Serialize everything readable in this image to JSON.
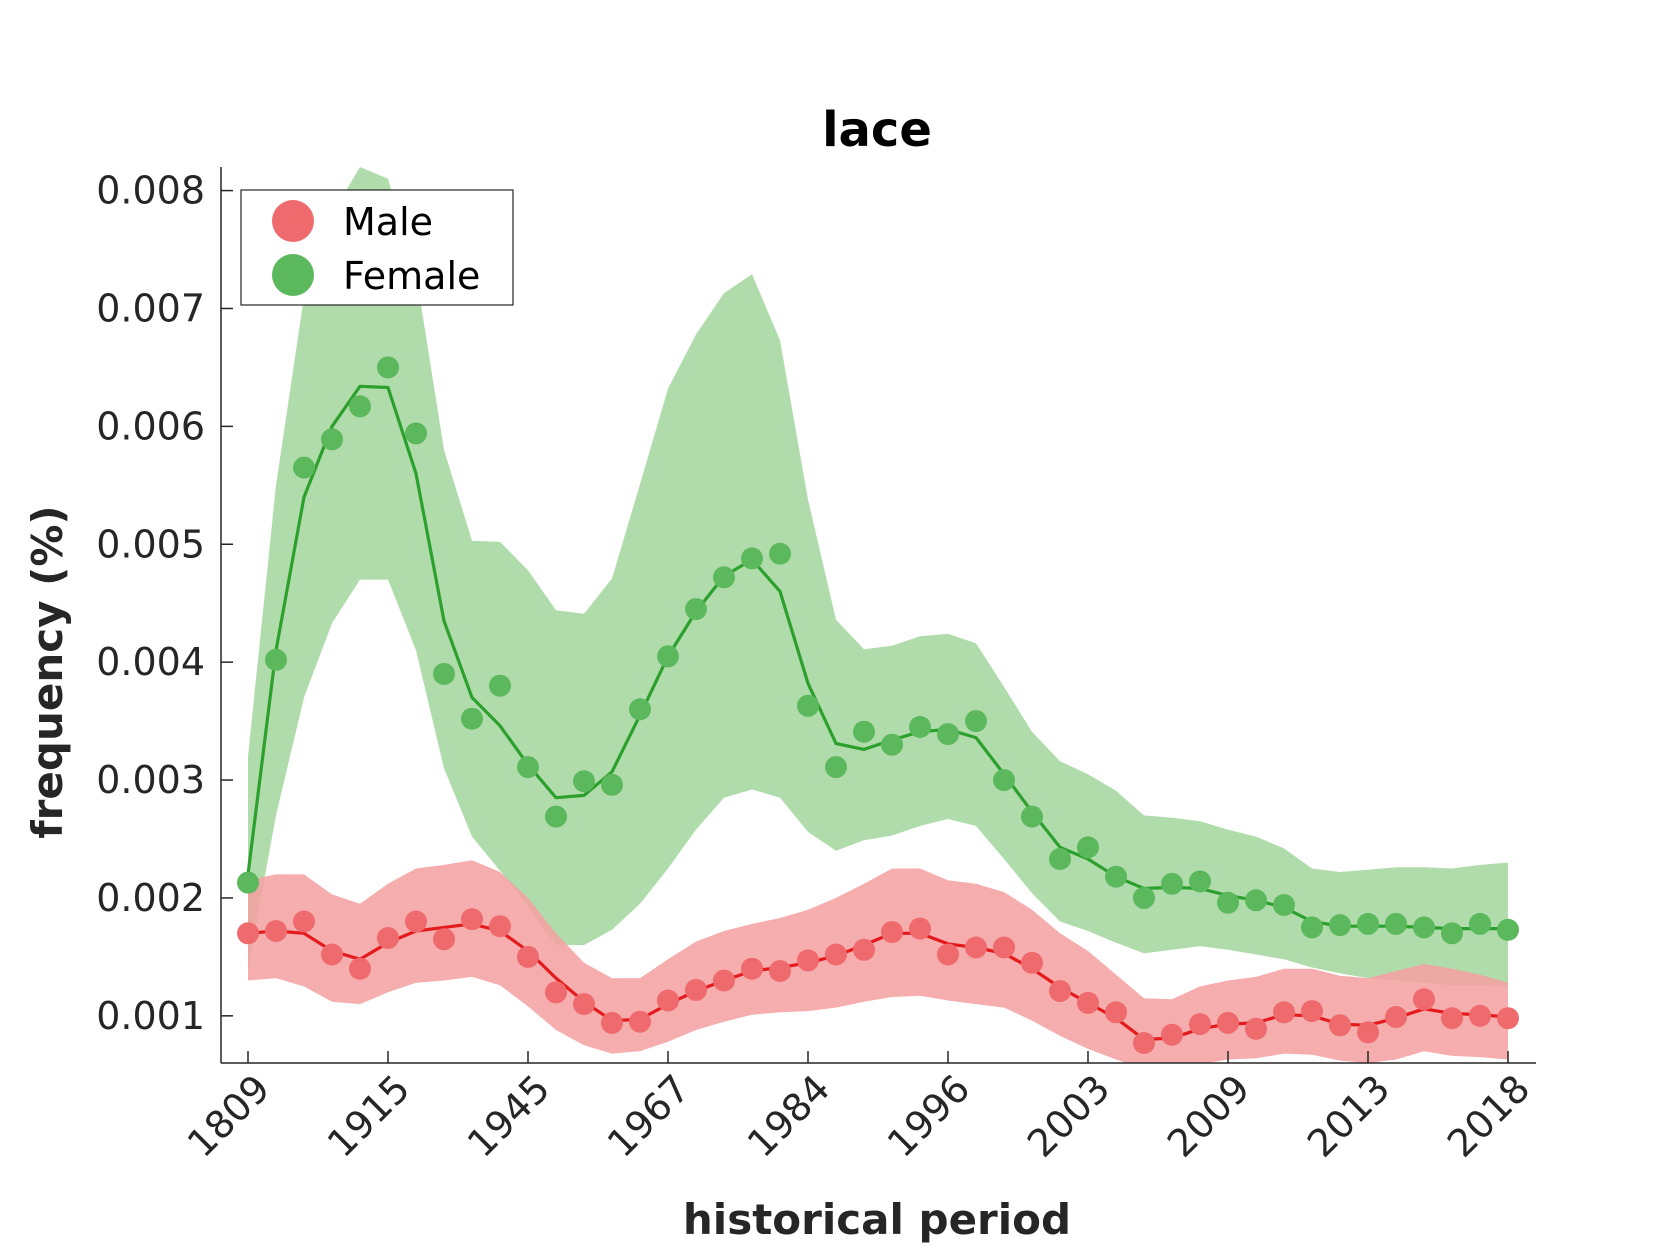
{
  "chart_data": {
    "type": "line",
    "title": "lace",
    "xlabel": "historical period",
    "ylabel": "frequency (%)",
    "ylim": [
      0.0006,
      0.0082
    ],
    "yticks": [
      "0.001",
      "0.002",
      "0.003",
      "0.004",
      "0.005",
      "0.006",
      "0.007",
      "0.008"
    ],
    "ytick_values": [
      0.001,
      0.002,
      0.003,
      0.004,
      0.005,
      0.006,
      0.007,
      0.008
    ],
    "xtick_labels": [
      "1809",
      "1915",
      "1945",
      "1967",
      "1984",
      "1996",
      "2003",
      "2009",
      "2013",
      "2018"
    ],
    "xtick_index": [
      0,
      5,
      10,
      15,
      20,
      25,
      30,
      35,
      40,
      45
    ],
    "n_points": 46,
    "grid": false,
    "legend_position": "top-left",
    "series": [
      {
        "name": "Male",
        "color": "#e41a1c",
        "dot_color": "#ee6a6c",
        "band_color": "#f4a2a3",
        "points": [
          0.0017,
          0.00172,
          0.0018,
          0.00152,
          0.0014,
          0.00166,
          0.0018,
          0.00165,
          0.00182,
          0.00176,
          0.0015,
          0.0012,
          0.0011,
          0.00094,
          0.00095,
          0.00113,
          0.00122,
          0.0013,
          0.0014,
          0.00138,
          0.00147,
          0.00152,
          0.00156,
          0.00171,
          0.00174,
          0.00152,
          0.00158,
          0.00158,
          0.00145,
          0.00121,
          0.00111,
          0.00103,
          0.00077,
          0.00084,
          0.00093,
          0.00094,
          0.00089,
          0.00103,
          0.00104,
          0.00092,
          0.00086,
          0.00099,
          0.00114,
          0.00098,
          0.001,
          0.00098
        ],
        "line": [
          0.0017,
          0.00172,
          0.0017,
          0.00155,
          0.00148,
          0.00162,
          0.00172,
          0.00175,
          0.00178,
          0.00172,
          0.00155,
          0.00132,
          0.00112,
          0.00096,
          0.00097,
          0.0011,
          0.00121,
          0.0013,
          0.00138,
          0.00141,
          0.00145,
          0.00151,
          0.0016,
          0.0017,
          0.0017,
          0.00161,
          0.00158,
          0.00153,
          0.0014,
          0.00124,
          0.00111,
          0.00098,
          0.0008,
          0.00081,
          0.00089,
          0.00093,
          0.00094,
          0.00101,
          0.001,
          0.00093,
          0.00092,
          0.00098,
          0.00106,
          0.00102,
          0.00101,
          0.00099
        ],
        "upper": [
          0.00215,
          0.0022,
          0.0022,
          0.00203,
          0.00195,
          0.00212,
          0.00225,
          0.00228,
          0.00232,
          0.00222,
          0.002,
          0.0017,
          0.00145,
          0.00132,
          0.00132,
          0.00148,
          0.00163,
          0.00172,
          0.00178,
          0.00183,
          0.0019,
          0.002,
          0.00212,
          0.00225,
          0.00225,
          0.00215,
          0.00212,
          0.00205,
          0.0019,
          0.0017,
          0.00155,
          0.00135,
          0.00115,
          0.00114,
          0.00125,
          0.0013,
          0.00133,
          0.0014,
          0.0014,
          0.00134,
          0.00132,
          0.00138,
          0.00144,
          0.0014,
          0.00135,
          0.00128
        ],
        "lower": [
          0.0013,
          0.00132,
          0.00125,
          0.00112,
          0.0011,
          0.0012,
          0.00128,
          0.0013,
          0.00133,
          0.00126,
          0.00108,
          0.00088,
          0.00075,
          0.00068,
          0.0007,
          0.00078,
          0.00088,
          0.00095,
          0.00101,
          0.00103,
          0.00104,
          0.00107,
          0.00112,
          0.00116,
          0.00117,
          0.00113,
          0.0011,
          0.00107,
          0.00096,
          0.00083,
          0.00072,
          0.00063,
          0.00055,
          0.00056,
          0.00059,
          0.00063,
          0.00064,
          0.00068,
          0.00067,
          0.00062,
          0.0006,
          0.00063,
          0.0007,
          0.00066,
          0.00065,
          0.00063
        ]
      },
      {
        "name": "Female",
        "color": "#2ca02c",
        "dot_color": "#5cb85c",
        "band_color": "#b0dcab",
        "points": [
          0.00213,
          0.00402,
          0.00565,
          0.00589,
          0.00617,
          0.0065,
          0.00594,
          0.0039,
          0.00352,
          0.0038,
          0.00311,
          0.00269,
          0.00299,
          0.00296,
          0.0036,
          0.00405,
          0.00445,
          0.00472,
          0.00488,
          0.00492,
          0.00363,
          0.00311,
          0.00341,
          0.0033,
          0.00345,
          0.00339,
          0.0035,
          0.003,
          0.00269,
          0.00233,
          0.00243,
          0.00218,
          0.002,
          0.00212,
          0.00214,
          0.00196,
          0.00198,
          0.00194,
          0.00175,
          0.00177,
          0.00178,
          0.00178,
          0.00175,
          0.0017,
          0.00178,
          0.00173
        ],
        "line": [
          0.0022,
          0.0041,
          0.0054,
          0.006,
          0.00634,
          0.00633,
          0.0056,
          0.00435,
          0.0037,
          0.00346,
          0.00313,
          0.00285,
          0.00287,
          0.00307,
          0.00355,
          0.00405,
          0.00443,
          0.00473,
          0.00487,
          0.0046,
          0.00382,
          0.00331,
          0.00326,
          0.00334,
          0.00341,
          0.00343,
          0.00336,
          0.00305,
          0.00273,
          0.00243,
          0.00233,
          0.00218,
          0.00208,
          0.00209,
          0.00208,
          0.00202,
          0.00198,
          0.00192,
          0.0018,
          0.00176,
          0.00176,
          0.00176,
          0.00175,
          0.00174,
          0.00174,
          0.00174
        ],
        "upper": [
          0.0032,
          0.0055,
          0.0071,
          0.0078,
          0.0082,
          0.0081,
          0.0073,
          0.0058,
          0.00503,
          0.00502,
          0.00478,
          0.00444,
          0.00441,
          0.00471,
          0.00551,
          0.00632,
          0.00678,
          0.00713,
          0.00729,
          0.00673,
          0.00538,
          0.00436,
          0.00411,
          0.00414,
          0.00422,
          0.00424,
          0.00416,
          0.00379,
          0.00341,
          0.00316,
          0.00305,
          0.00291,
          0.0027,
          0.00268,
          0.00265,
          0.00258,
          0.00252,
          0.00242,
          0.00225,
          0.00222,
          0.00224,
          0.00226,
          0.00226,
          0.00225,
          0.00228,
          0.0023
        ],
        "lower": [
          0.0014,
          0.0027,
          0.0037,
          0.00433,
          0.0047,
          0.0047,
          0.0041,
          0.0031,
          0.00252,
          0.00223,
          0.00193,
          0.0016,
          0.0016,
          0.00173,
          0.00195,
          0.00225,
          0.00258,
          0.00285,
          0.00292,
          0.00285,
          0.00256,
          0.0024,
          0.00249,
          0.00253,
          0.00261,
          0.00267,
          0.00261,
          0.00233,
          0.00204,
          0.0018,
          0.00172,
          0.00162,
          0.00153,
          0.00156,
          0.00159,
          0.00156,
          0.00152,
          0.00148,
          0.00141,
          0.00136,
          0.00132,
          0.0013,
          0.00128,
          0.00126,
          0.00126,
          0.00125
        ]
      }
    ]
  }
}
